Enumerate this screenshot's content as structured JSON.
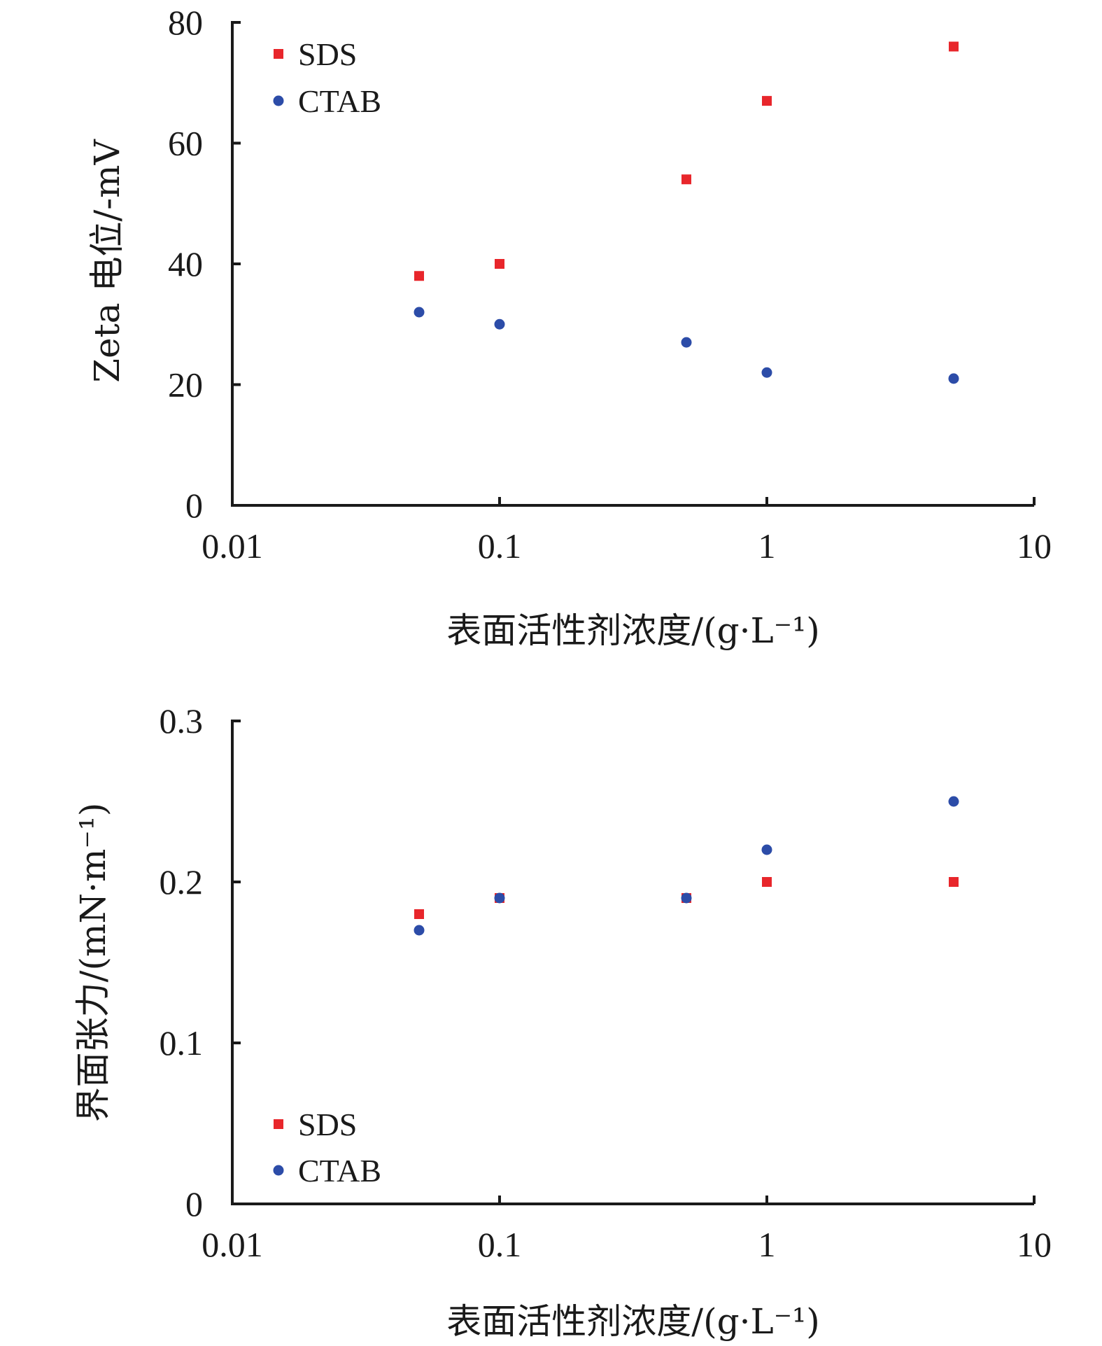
{
  "chart_data": [
    {
      "type": "scatter",
      "title": "",
      "xlabel": "表面活性剂浓度/(g·L⁻¹)",
      "ylabel": "Zeta 电位/-mV",
      "x_scale": "log",
      "xlim": [
        0.01,
        10
      ],
      "ylim": [
        0,
        80
      ],
      "x_ticks": [
        0.01,
        0.1,
        1,
        10
      ],
      "x_tick_labels": [
        "0.01",
        "0.1",
        "1",
        "10"
      ],
      "y_ticks": [
        0,
        20,
        40,
        60,
        80
      ],
      "y_tick_labels": [
        "0",
        "20",
        "40",
        "60",
        "80"
      ],
      "grid": false,
      "legend_position": "top-left",
      "series": [
        {
          "name": "SDS",
          "marker": "square",
          "color": "#e8262b",
          "x": [
            0.05,
            0.1,
            0.5,
            1,
            5
          ],
          "y": [
            38,
            40,
            54,
            67,
            76
          ]
        },
        {
          "name": "CTAB",
          "marker": "circle",
          "color": "#2c4ca8",
          "x": [
            0.05,
            0.1,
            0.5,
            1,
            5
          ],
          "y": [
            32,
            30,
            27,
            22,
            21
          ]
        }
      ]
    },
    {
      "type": "scatter",
      "title": "",
      "xlabel": "表面活性剂浓度/(g·L⁻¹)",
      "ylabel": "界面张力/(mN·m⁻¹)",
      "x_scale": "log",
      "xlim": [
        0.01,
        10
      ],
      "ylim": [
        0,
        0.3
      ],
      "x_ticks": [
        0.01,
        0.1,
        1,
        10
      ],
      "x_tick_labels": [
        "0.01",
        "0.1",
        "1",
        "10"
      ],
      "y_ticks": [
        0,
        0.1,
        0.2,
        0.3
      ],
      "y_tick_labels": [
        "0",
        "0.1",
        "0.2",
        "0.3"
      ],
      "grid": false,
      "legend_position": "bottom-left",
      "series": [
        {
          "name": "SDS",
          "marker": "square",
          "color": "#e8262b",
          "x": [
            0.05,
            0.1,
            0.5,
            1,
            5
          ],
          "y": [
            0.18,
            0.19,
            0.19,
            0.2,
            0.2
          ]
        },
        {
          "name": "CTAB",
          "marker": "circle",
          "color": "#2c4ca8",
          "x": [
            0.05,
            0.1,
            0.5,
            1,
            5
          ],
          "y": [
            0.17,
            0.19,
            0.19,
            0.22,
            0.25
          ]
        }
      ]
    }
  ]
}
